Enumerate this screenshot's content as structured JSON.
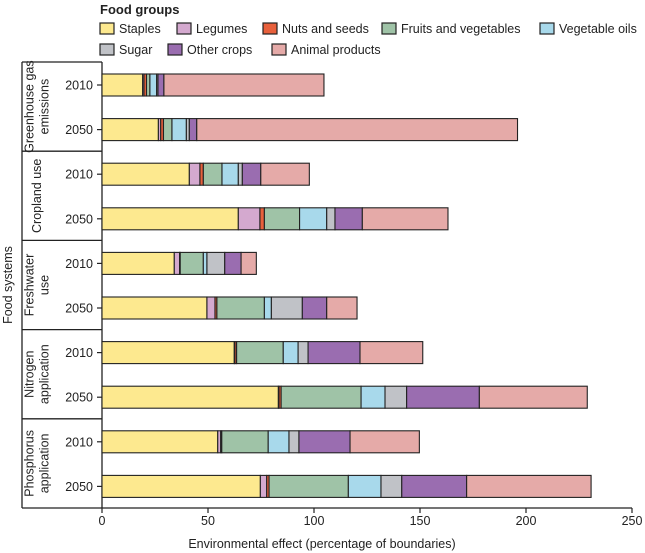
{
  "chart_data": {
    "type": "bar",
    "orientation": "horizontal",
    "stacked": true,
    "legend_title": "Food groups",
    "legend_position": "top",
    "xlabel": "Environmental effect (percentage of boundaries)",
    "ylabel": "Food systems",
    "xlim": [
      0,
      250
    ],
    "xticks": [
      "0",
      "50",
      "100",
      "150",
      "200",
      "250"
    ],
    "series": [
      {
        "name": "Staples",
        "color": "#fde98f"
      },
      {
        "name": "Legumes",
        "color": "#d4a9cf"
      },
      {
        "name": "Nuts and seeds",
        "color": "#e8603c"
      },
      {
        "name": "Fruits and vegetables",
        "color": "#9fc3a7"
      },
      {
        "name": "Vegetable oils",
        "color": "#a8d9eb"
      },
      {
        "name": "Sugar",
        "color": "#c0c2c7"
      },
      {
        "name": "Other crops",
        "color": "#9a6db0"
      },
      {
        "name": "Animal products",
        "color": "#e5aaa8"
      }
    ],
    "groups": [
      {
        "label_lines": [
          "Greenhouse gas",
          "emissions"
        ],
        "bars": [
          {
            "year": "2010",
            "values": [
              19.2,
              0.6,
              1.2,
              1.6,
              3.2,
              0.6,
              2.8,
              75.5
            ]
          },
          {
            "year": "2050",
            "values": [
              26.6,
              1.1,
              1.3,
              4.0,
              6.8,
              1.4,
              3.5,
              151.3
            ]
          }
        ]
      },
      {
        "label_lines": [
          "Cropland use"
        ],
        "bars": [
          {
            "year": "2010",
            "values": [
              41.2,
              5.0,
              1.6,
              8.8,
              7.7,
              1.9,
              8.7,
              22.9
            ]
          },
          {
            "year": "2050",
            "values": [
              64.3,
              10.2,
              2.1,
              16.6,
              12.8,
              3.9,
              12.9,
              40.4
            ]
          }
        ]
      },
      {
        "label_lines": [
          "Freshwater",
          "use"
        ],
        "bars": [
          {
            "year": "2010",
            "values": [
              34.1,
              2.5,
              0.3,
              10.9,
              1.7,
              8.4,
              7.7,
              7.2
            ]
          },
          {
            "year": "2050",
            "values": [
              49.5,
              3.8,
              0.9,
              22.4,
              3.3,
              14.6,
              11.5,
              14.3
            ]
          }
        ]
      },
      {
        "label_lines": [
          "Nitrogen",
          "application"
        ],
        "bars": [
          {
            "year": "2010",
            "values": [
              62.4,
              0.3,
              0.8,
              22.0,
              7.0,
              4.7,
              24.5,
              29.6
            ]
          },
          {
            "year": "2050",
            "values": [
              83.2,
              0.3,
              1.0,
              37.7,
              11.3,
              10.2,
              34.3,
              50.9
            ]
          }
        ]
      },
      {
        "label_lines": [
          "Phosphorus",
          "application"
        ],
        "bars": [
          {
            "year": "2010",
            "values": [
              54.6,
              1.4,
              0.5,
              21.9,
              9.8,
              4.7,
              24.1,
              32.7
            ]
          },
          {
            "year": "2050",
            "values": [
              74.7,
              3.0,
              1.1,
              37.4,
              15.4,
              9.8,
              30.6,
              58.7
            ]
          }
        ]
      }
    ]
  }
}
